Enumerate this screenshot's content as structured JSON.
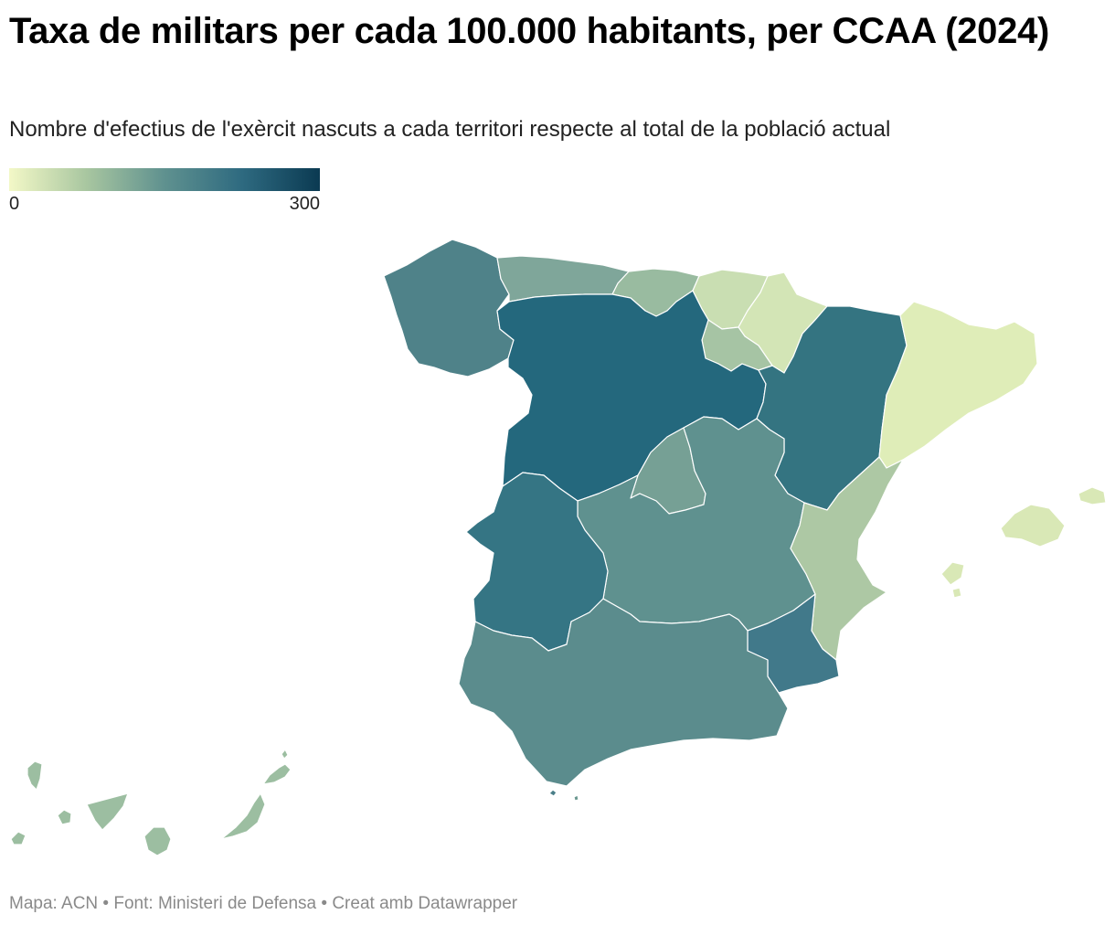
{
  "header": {
    "title": "Taxa de militars per cada 100.000 habitants, per CCAA (2024)",
    "subtitle": "Nombre d'efectius de l'exèrcit nascuts a cada territori respecte al total de la població actual"
  },
  "legend": {
    "min_label": "0",
    "max_label": "300",
    "min": 0,
    "max": 300,
    "gradient": [
      "#f3f8c7",
      "#a8c6a0",
      "#5f918f",
      "#2e6a80",
      "#0b3a52"
    ]
  },
  "map": {
    "regions": [
      {
        "id": "galicia",
        "color": "#4f8289"
      },
      {
        "id": "asturias",
        "color": "#7fa69a"
      },
      {
        "id": "cantabria",
        "color": "#99bba0"
      },
      {
        "id": "pais-basc",
        "color": "#c9deb2"
      },
      {
        "id": "navarra",
        "color": "#d3e5b6"
      },
      {
        "id": "la-rioja",
        "color": "#a6c4a4"
      },
      {
        "id": "castella-i-lleo",
        "color": "#24687d"
      },
      {
        "id": "arago",
        "color": "#347481"
      },
      {
        "id": "catalunya",
        "color": "#dfedb8"
      },
      {
        "id": "madrid",
        "color": "#76a095"
      },
      {
        "id": "castella-la-manxa",
        "color": "#5f918f"
      },
      {
        "id": "extremadura",
        "color": "#357584"
      },
      {
        "id": "comunitat-valenciana",
        "color": "#adc8a4"
      },
      {
        "id": "murcia",
        "color": "#41798a"
      },
      {
        "id": "andalusia",
        "color": "#5b8c8d"
      },
      {
        "id": "illes-balears",
        "color": "#d9e8b6"
      },
      {
        "id": "canaries",
        "color": "#9cbea1"
      },
      {
        "id": "ceuta",
        "color": "#4a7e88"
      },
      {
        "id": "melilla",
        "color": "#6a978f"
      }
    ]
  },
  "footer": {
    "source": "Mapa: ACN • Font: Ministeri de Defensa • Creat amb Datawrapper"
  }
}
